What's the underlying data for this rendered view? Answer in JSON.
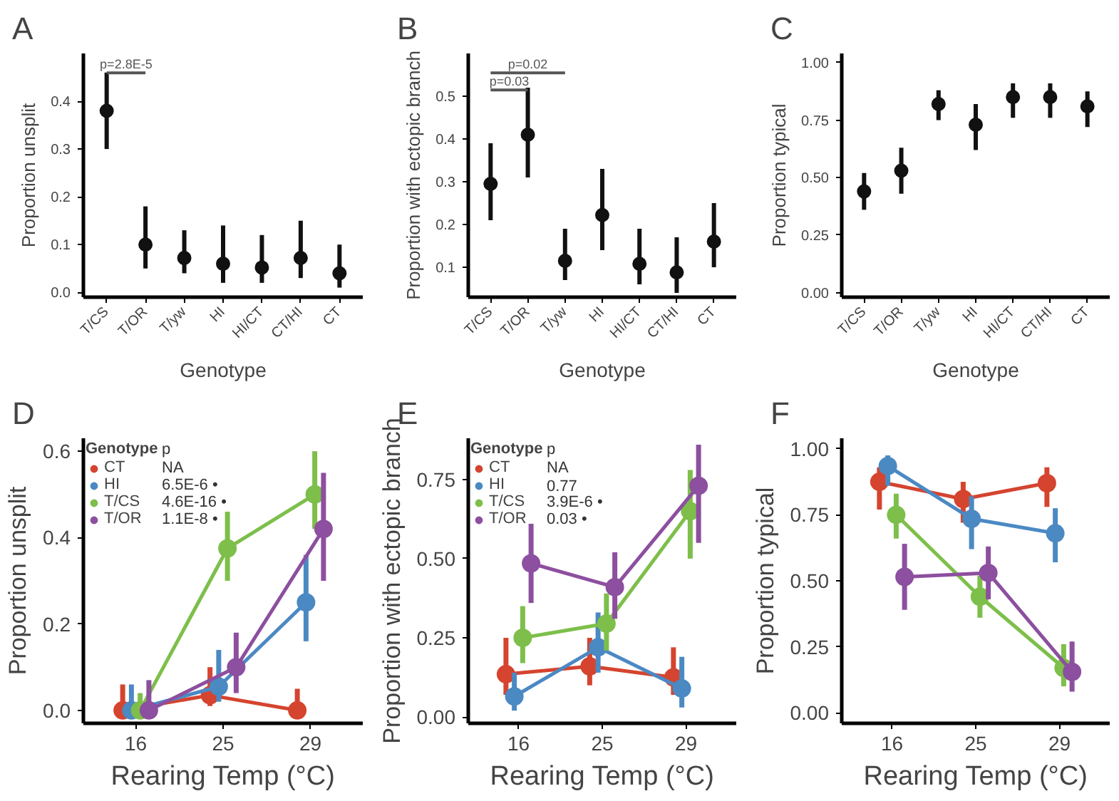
{
  "chart_data": [
    {
      "type": "scatter",
      "title": "A",
      "xlabel": "Genotype",
      "ylabel": "Proportion unsplit",
      "categories": [
        "T/CS",
        "T/OR",
        "T/yw",
        "HI",
        "HI/CT",
        "CT/HI",
        "CT"
      ],
      "values": [
        0.38,
        0.1,
        0.072,
        0.06,
        0.052,
        0.072,
        0.04
      ],
      "errors": [
        [
          0.3,
          0.46
        ],
        [
          0.05,
          0.18
        ],
        [
          0.04,
          0.13
        ],
        [
          0.02,
          0.14
        ],
        [
          0.02,
          0.12
        ],
        [
          0.03,
          0.15
        ],
        [
          0.01,
          0.1
        ]
      ],
      "color": "#111111",
      "ylim": [
        -0.01,
        0.5
      ],
      "yticks": [
        {
          "value": 0,
          "label": "0.0"
        },
        0.1,
        0.2,
        0.3,
        0.4
      ],
      "annotations": [
        "p=2.8E-5"
      ],
      "marker": "circle",
      "grid": false,
      "legend": false
    },
    {
      "type": "scatter",
      "title": "B",
      "xlabel": "Genotype",
      "ylabel": "Proportion with ectopic branch",
      "categories": [
        "T/CS",
        "T/OR",
        "T/yw",
        "HI",
        "HI/CT",
        "CT/HI",
        "CT"
      ],
      "values": [
        0.295,
        0.41,
        0.115,
        0.222,
        0.108,
        0.088,
        0.16
      ],
      "errors": [
        [
          0.21,
          0.39
        ],
        [
          0.31,
          0.52
        ],
        [
          0.07,
          0.19
        ],
        [
          0.14,
          0.33
        ],
        [
          0.06,
          0.19
        ],
        [
          0.04,
          0.17
        ],
        [
          0.1,
          0.25
        ]
      ],
      "color": "#111111",
      "ylim": [
        0.03,
        0.6
      ],
      "yticks": [
        0.1,
        0.2,
        0.3,
        0.4,
        0.5
      ],
      "annotations": [
        "p=0.02",
        "p=0.03"
      ],
      "marker": "circle",
      "grid": false,
      "legend": false
    },
    {
      "type": "scatter",
      "title": "C",
      "xlabel": "Genotype",
      "ylabel": "Proportion typical",
      "categories": [
        "T/CS",
        "T/OR",
        "T/yw",
        "HI",
        "HI/CT",
        "CT/HI",
        "CT"
      ],
      "values": [
        0.44,
        0.53,
        0.82,
        0.73,
        0.85,
        0.85,
        0.81
      ],
      "errors": [
        [
          0.36,
          0.52
        ],
        [
          0.43,
          0.63
        ],
        [
          0.75,
          0.88
        ],
        [
          0.62,
          0.82
        ],
        [
          0.76,
          0.91
        ],
        [
          0.76,
          0.91
        ],
        [
          0.72,
          0.875
        ]
      ],
      "color": "#111111",
      "ylim": [
        -0.02,
        1.04
      ],
      "yticks": [
        {
          "value": 0,
          "label": "0.00"
        },
        0.25,
        {
          "value": 0.5,
          "label": "0.50"
        },
        0.75,
        {
          "value": 1,
          "label": "1.00"
        }
      ],
      "marker": "circle",
      "grid": false,
      "legend": false
    },
    {
      "type": "line",
      "title": "D",
      "xlabel": "Rearing Temp (°C)",
      "ylabel": "Proportion unsplit",
      "categories": [
        "16",
        "25",
        "29"
      ],
      "legend_title": "Genotype",
      "annotations": [
        "p",
        "NA",
        "6.5E-6 •",
        "4.6E-16 •",
        "1.1E-8 •"
      ],
      "ylim": [
        -0.03,
        0.63
      ],
      "yticks": [
        {
          "value": 0,
          "label": "0.0"
        },
        0.2,
        0.4,
        0.6
      ],
      "marker": "circle",
      "grid": false,
      "legend": "top left",
      "series": [
        {
          "name": "CT",
          "color": "#d5442f",
          "values": [
            0,
            0.035,
            0
          ],
          "errors": [
            [
              0,
              0.06
            ],
            [
              0.01,
              0.1
            ],
            [
              0,
              0.05
            ]
          ]
        },
        {
          "name": "HI",
          "color": "#4b89c3",
          "values": [
            0,
            0.055,
            0.25
          ],
          "errors": [
            [
              0,
              0.06
            ],
            [
              0.02,
              0.14
            ],
            [
              0.16,
              0.36
            ]
          ]
        },
        {
          "name": "T/CS",
          "color": "#7dbf4a",
          "values": [
            0,
            0.375,
            0.5
          ],
          "errors": [
            [
              0,
              0.04
            ],
            [
              0.3,
              0.46
            ],
            [
              0.42,
              0.6
            ]
          ]
        },
        {
          "name": "T/OR",
          "color": "#8d4f9f",
          "values": [
            0,
            0.1,
            0.42
          ],
          "errors": [
            [
              0,
              0.07
            ],
            [
              0.04,
              0.18
            ],
            [
              0.3,
              0.55
            ]
          ]
        }
      ]
    },
    {
      "type": "line",
      "title": "E",
      "xlabel": "Rearing Temp (°C)",
      "ylabel": "Proportion with ectopic branch",
      "categories": [
        "16",
        "25",
        "29"
      ],
      "legend_title": "Genotype",
      "annotations": [
        "p",
        "NA",
        "0.77",
        "3.9E-6 •",
        "0.03 •"
      ],
      "ylim": [
        -0.02,
        0.88
      ],
      "yticks": [
        {
          "value": 0,
          "label": "0.00"
        },
        0.25,
        {
          "value": 0.5,
          "label": "0.50"
        },
        0.75
      ],
      "marker": "circle",
      "grid": false,
      "legend": "top left",
      "series": [
        {
          "name": "CT",
          "color": "#d5442f",
          "values": [
            0.135,
            0.16,
            0.125
          ],
          "errors": [
            [
              0.07,
              0.25
            ],
            [
              0.1,
              0.25
            ],
            [
              0.07,
              0.22
            ]
          ]
        },
        {
          "name": "HI",
          "color": "#4b89c3",
          "values": [
            0.065,
            0.22,
            0.09
          ],
          "errors": [
            [
              0.02,
              0.14
            ],
            [
              0.14,
              0.33
            ],
            [
              0.03,
              0.19
            ]
          ]
        },
        {
          "name": "T/CS",
          "color": "#7dbf4a",
          "values": [
            0.25,
            0.295,
            0.65
          ],
          "errors": [
            [
              0.17,
              0.35
            ],
            [
              0.21,
              0.39
            ],
            [
              0.5,
              0.78
            ]
          ]
        },
        {
          "name": "T/OR",
          "color": "#8d4f9f",
          "values": [
            0.485,
            0.41,
            0.73
          ],
          "errors": [
            [
              0.36,
              0.61
            ],
            [
              0.31,
              0.52
            ],
            [
              0.55,
              0.86
            ]
          ]
        }
      ]
    },
    {
      "type": "line",
      "title": "F",
      "xlabel": "Rearing Temp (°C)",
      "ylabel": "Proportion typical",
      "categories": [
        "16",
        "25",
        "29"
      ],
      "ylim": [
        -0.04,
        1.04
      ],
      "yticks": [
        {
          "value": 0,
          "label": "0.00"
        },
        0.25,
        {
          "value": 0.5,
          "label": "0.50"
        },
        0.75,
        {
          "value": 1,
          "label": "1.00"
        }
      ],
      "marker": "circle",
      "grid": false,
      "legend": false,
      "series": [
        {
          "color": "#d5442f",
          "values": [
            0.875,
            0.81,
            0.87
          ],
          "errors": [
            [
              0.77,
              0.93
            ],
            [
              0.72,
              0.875
            ],
            [
              0.78,
              0.93
            ]
          ]
        },
        {
          "color": "#4b89c3",
          "values": [
            0.935,
            0.735,
            0.68
          ],
          "errors": [
            [
              0.86,
              0.975
            ],
            [
              0.62,
              0.82
            ],
            [
              0.57,
              0.775
            ]
          ]
        },
        {
          "color": "#7dbf4a",
          "values": [
            0.75,
            0.44,
            0.17
          ],
          "errors": [
            [
              0.66,
              0.83
            ],
            [
              0.36,
              0.52
            ],
            [
              0.1,
              0.26
            ]
          ]
        },
        {
          "color": "#8d4f9f",
          "values": [
            0.515,
            0.53,
            0.155
          ],
          "errors": [
            [
              0.39,
              0.64
            ],
            [
              0.43,
              0.63
            ],
            [
              0.08,
              0.27
            ]
          ]
        }
      ]
    }
  ]
}
